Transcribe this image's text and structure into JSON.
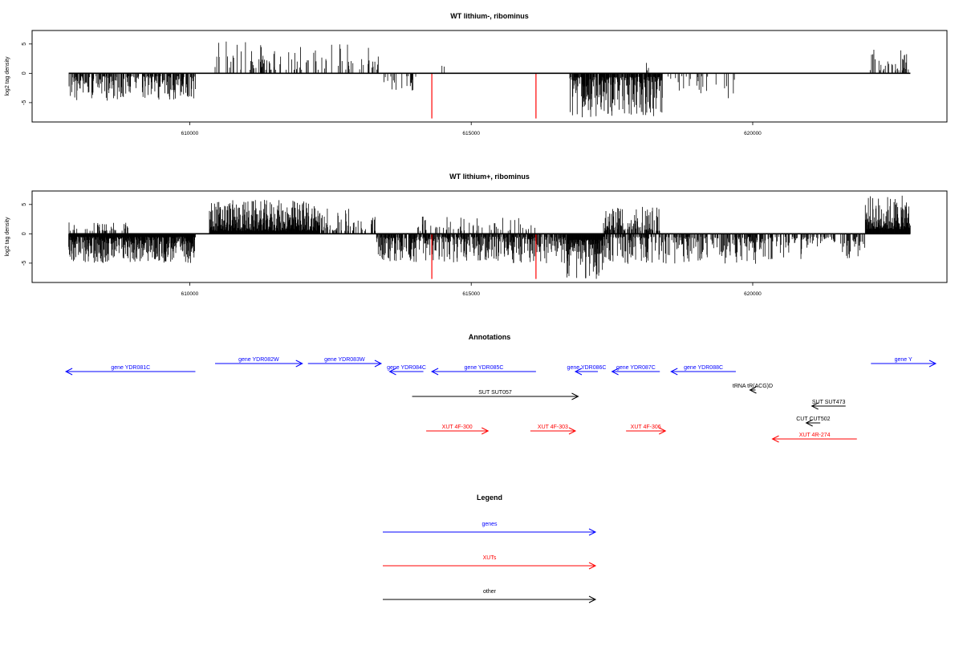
{
  "colors": {
    "black": "#000000",
    "gene": "#0000ff",
    "xut": "#ff0000"
  },
  "panels": {
    "top": {
      "title": "WT lithium-, ribominus",
      "ylabel": "log2 tag density"
    },
    "bottom": {
      "title": "WT lithium+, ribominus",
      "ylabel": "log2 tag density"
    }
  },
  "annotations": {
    "title": "Annotations",
    "features": [
      {
        "label": "gene YDR081C",
        "type": "gene",
        "strand": "-",
        "start": 607800,
        "end": 610100
      },
      {
        "label": "gene YDR082W",
        "type": "gene",
        "strand": "+",
        "start": 610450,
        "end": 612000
      },
      {
        "label": "gene YDR083W",
        "type": "gene",
        "strand": "+",
        "start": 612100,
        "end": 613400
      },
      {
        "label": "gene YDR084C",
        "type": "gene",
        "strand": "-",
        "start": 613550,
        "end": 614150
      },
      {
        "label": "gene YDR085C",
        "type": "gene",
        "strand": "-",
        "start": 614300,
        "end": 616150
      },
      {
        "label": "gene YDR086C",
        "type": "gene",
        "strand": "-",
        "start": 616850,
        "end": 617250
      },
      {
        "label": "gene YDR087C",
        "type": "gene",
        "strand": "-",
        "start": 617500,
        "end": 618350
      },
      {
        "label": "gene YDR088C",
        "type": "gene",
        "strand": "-",
        "start": 618550,
        "end": 619700
      },
      {
        "label": "gene Y",
        "type": "gene",
        "strand": "+",
        "start": 622100,
        "end": 623250
      },
      {
        "label": "SUT SUT057",
        "type": "other",
        "strand": "+",
        "start": 613950,
        "end": 616900
      },
      {
        "label": "tRNA tR(ACG)D",
        "type": "other",
        "strand": "-",
        "start": 619950,
        "end": 620050
      },
      {
        "label": "SUT SUT473",
        "type": "other",
        "strand": "-",
        "start": 621050,
        "end": 621650
      },
      {
        "label": "CUT CUT502",
        "type": "other",
        "strand": "-",
        "start": 620950,
        "end": 621200
      },
      {
        "label": "XUT 4F-300",
        "type": "xut",
        "strand": "+",
        "start": 614200,
        "end": 615300
      },
      {
        "label": "XUT 4F-303",
        "type": "xut",
        "strand": "+",
        "start": 616050,
        "end": 616850
      },
      {
        "label": "XUT 4F-306",
        "type": "xut",
        "strand": "+",
        "start": 617750,
        "end": 618450
      },
      {
        "label": "XUT 4R-274",
        "type": "xut",
        "strand": "-",
        "start": 620350,
        "end": 621850
      }
    ]
  },
  "legend": {
    "title": "Legend",
    "items": [
      {
        "label": "genes",
        "type": "gene"
      },
      {
        "label": "XUTs",
        "type": "xut"
      },
      {
        "label": "other",
        "type": "other"
      }
    ]
  },
  "chart_data": [
    {
      "type": "bar",
      "title": "WT lithium-, ribominus",
      "ylabel": "log2 tag density",
      "xlabel": "",
      "xlim": [
        607200,
        623450
      ],
      "ylim": [
        -8.3,
        7.3
      ],
      "xticks": [
        610000,
        615000,
        620000
      ],
      "yticks": [
        -5,
        0,
        5
      ],
      "grid": false,
      "highlight_color": "#ff0000",
      "highlights": [
        {
          "x": 614300,
          "y": -7.7
        },
        {
          "x": 616150,
          "y": -7.7
        }
      ],
      "segments": [
        {
          "start": 607850,
          "end": 610100,
          "density": 0.55,
          "min": -4.8,
          "max": -0.5
        },
        {
          "start": 610450,
          "end": 613350,
          "density": 0.18,
          "min": 0.6,
          "max": 5.6
        },
        {
          "start": 613450,
          "end": 614050,
          "density": 0.12,
          "min": -3.2,
          "max": -0.5
        },
        {
          "start": 614450,
          "end": 614550,
          "density": 0.1,
          "min": 0.5,
          "max": 1.6
        },
        {
          "start": 616750,
          "end": 618400,
          "density": 0.8,
          "min": -7.5,
          "max": -0.6
        },
        {
          "start": 618100,
          "end": 618150,
          "density": 0.5,
          "min": 0.5,
          "max": 2.0
        },
        {
          "start": 618400,
          "end": 619350,
          "density": 0.15,
          "min": -4.5,
          "max": -0.5
        },
        {
          "start": 619500,
          "end": 619700,
          "density": 0.1,
          "min": -5.0,
          "max": -1.0
        },
        {
          "start": 622050,
          "end": 622800,
          "density": 0.25,
          "min": 0.5,
          "max": 4.2
        }
      ]
    },
    {
      "type": "bar",
      "title": "WT lithium+, ribominus",
      "ylabel": "log2 tag density",
      "xlabel": "",
      "xlim": [
        607200,
        623450
      ],
      "ylim": [
        -8.3,
        7.3
      ],
      "xticks": [
        610000,
        615000,
        620000
      ],
      "yticks": [
        -5,
        0,
        5
      ],
      "grid": false,
      "highlight_color": "#ff0000",
      "highlights": [
        {
          "x": 614300,
          "y": -7.7
        },
        {
          "x": 616150,
          "y": -7.7
        }
      ],
      "segments": [
        {
          "start": 607850,
          "end": 610100,
          "density": 1.2,
          "min": -5.0,
          "max": -0.5
        },
        {
          "start": 607850,
          "end": 608900,
          "density": 0.2,
          "min": 0.5,
          "max": 2.0
        },
        {
          "start": 610350,
          "end": 612300,
          "density": 1.0,
          "min": 0.5,
          "max": 5.8
        },
        {
          "start": 612300,
          "end": 613300,
          "density": 0.3,
          "min": 0.5,
          "max": 4.5
        },
        {
          "start": 613300,
          "end": 616750,
          "density": 0.7,
          "min": -5.0,
          "max": -0.5
        },
        {
          "start": 614000,
          "end": 616200,
          "density": 0.15,
          "min": 0.5,
          "max": 3.0
        },
        {
          "start": 616700,
          "end": 617350,
          "density": 1.2,
          "min": -7.8,
          "max": -1.0
        },
        {
          "start": 617350,
          "end": 618350,
          "density": 0.6,
          "min": 0.5,
          "max": 4.8
        },
        {
          "start": 617350,
          "end": 620400,
          "density": 0.45,
          "min": -5.2,
          "max": -0.5
        },
        {
          "start": 620400,
          "end": 622000,
          "density": 0.3,
          "min": -4.5,
          "max": -0.5
        },
        {
          "start": 622000,
          "end": 622800,
          "density": 1.3,
          "min": 0.8,
          "max": 6.5
        }
      ]
    }
  ]
}
